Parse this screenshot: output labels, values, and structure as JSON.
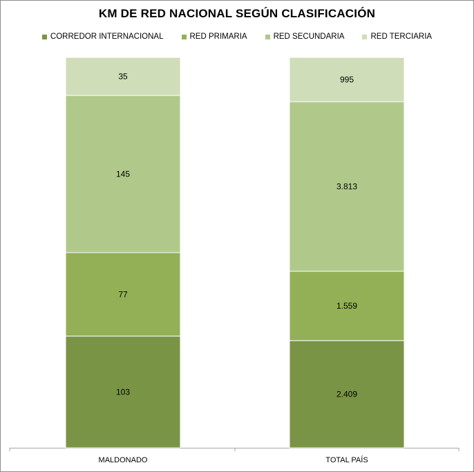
{
  "chart_data": {
    "type": "bar",
    "stacked": true,
    "normalized": true,
    "title": "KM DE RED NACIONAL SEGÚN CLASIFICACIÓN",
    "categories": [
      "MALDONADO",
      "TOTAL PAÍS"
    ],
    "series": [
      {
        "name": "CORREDOR INTERNACIONAL",
        "color": "#7a9445",
        "values": [
          103,
          2409
        ],
        "labels": [
          "103",
          "2.409"
        ]
      },
      {
        "name": "RED PRIMARIA",
        "color": "#93b056",
        "values": [
          77,
          1559
        ],
        "labels": [
          "77",
          "1.559"
        ]
      },
      {
        "name": "RED SECUNDARIA",
        "color": "#b0c98b",
        "values": [
          145,
          3813
        ],
        "labels": [
          "145",
          "3.813"
        ]
      },
      {
        "name": "RED TERCIARIA",
        "color": "#cfddb8",
        "values": [
          35,
          995
        ],
        "labels": [
          "35",
          "995"
        ]
      }
    ],
    "legend_position": "top",
    "grid": false
  }
}
